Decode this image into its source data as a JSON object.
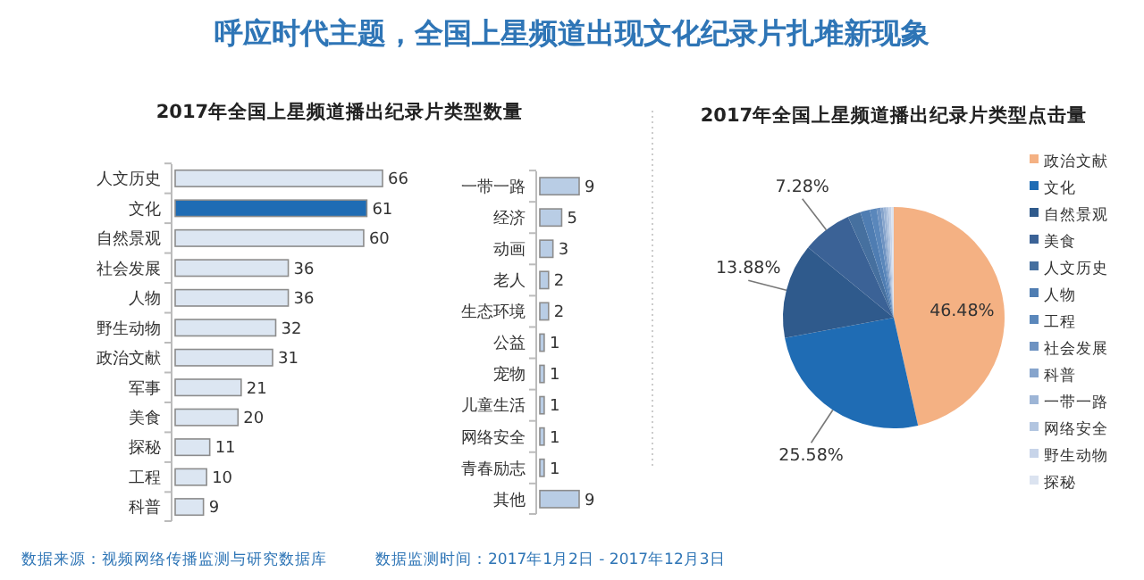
{
  "chart_data": [
    {
      "type": "other",
      "title": "呼应时代主题，全国上星频道出现文化纪录片扎堆新现象",
      "annotations": [
        "数据来源：视频网络传播监测与研究数据库",
        "数据监测时间：2017年1月2日 - 2017年12月3日"
      ]
    },
    {
      "type": "bar",
      "orientation": "horizontal",
      "title": "2017年全国上星频道播出纪录片类型数量",
      "categories": [
        "人文历史",
        "文化",
        "自然景观",
        "社会发展",
        "人物",
        "野生动物",
        "政治文献",
        "军事",
        "美食",
        "探秘",
        "工程",
        "科普"
      ],
      "values": [
        66,
        61,
        60,
        36,
        36,
        32,
        31,
        21,
        20,
        11,
        10,
        9
      ],
      "colors": [
        "#dce6f2",
        "#1f6cb4",
        "#dce6f2",
        "#dce6f2",
        "#dce6f2",
        "#dce6f2",
        "#dce6f2",
        "#dce6f2",
        "#dce6f2",
        "#dce6f2",
        "#dce6f2",
        "#dce6f2"
      ],
      "data_labels": true
    },
    {
      "type": "bar",
      "orientation": "horizontal",
      "categories": [
        "一带一路",
        "经济",
        "动画",
        "老人",
        "生态环境",
        "公益",
        "宠物",
        "儿童生活",
        "网络安全",
        "青春励志",
        "其他"
      ],
      "values": [
        9,
        5,
        3,
        2,
        2,
        1,
        1,
        1,
        1,
        1,
        9
      ],
      "color": "#b9cde5",
      "data_labels": true
    },
    {
      "type": "pie",
      "title": "2017年全国上星频道播出纪录片类型点击量",
      "categories": [
        "政治文献",
        "文化",
        "自然景观",
        "美食",
        "人文历史",
        "人物",
        "工程",
        "社会发展",
        "科普",
        "一带一路",
        "网络安全",
        "野生动物",
        "探秘"
      ],
      "values": [
        46.48,
        25.58,
        13.88,
        7.28,
        1.9,
        1.4,
        1.0,
        0.6,
        0.4,
        0.4,
        0.36,
        0.36,
        0.36
      ],
      "value_labels": [
        "46.48%",
        "25.58%",
        "13.88%",
        "7.28%",
        null,
        null,
        null,
        null,
        null,
        null,
        null,
        null,
        null
      ],
      "colors": [
        "#f4b183",
        "#1f6cb4",
        "#2f5a8c",
        "#3b6296",
        "#46709f",
        "#4f7db2",
        "#5a87bb",
        "#6e93c2",
        "#86a4cc",
        "#9db5d6",
        "#b2c5e0",
        "#c7d4e9",
        "#dbe3f0"
      ],
      "legend": "right"
    }
  ]
}
